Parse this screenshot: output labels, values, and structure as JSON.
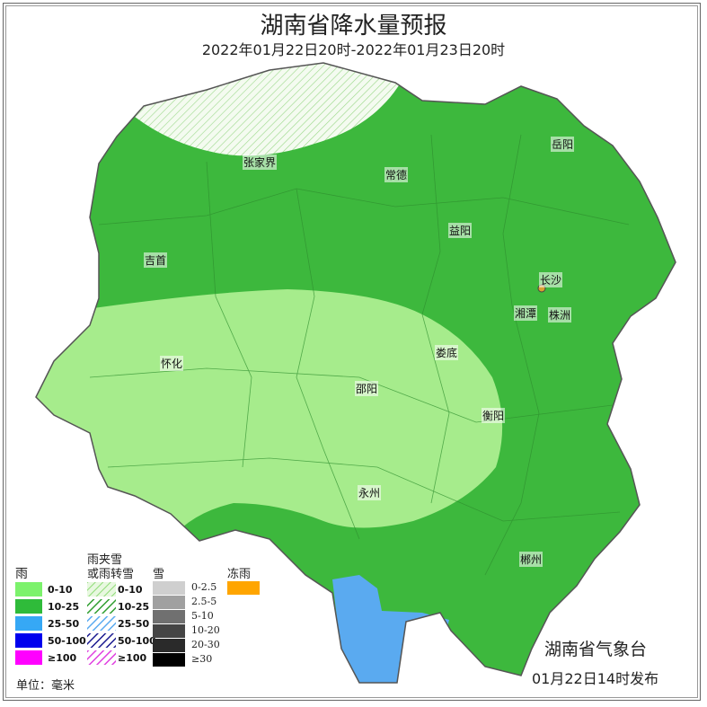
{
  "header": {
    "title": "湖南省降水量预报",
    "subtitle": "2022年01月22日20时-2022年01月23日20时"
  },
  "colors": {
    "rain_0_10": "#a6ec8c",
    "rain_10_25": "#3db83d",
    "rain_25_50": "#5aaaf0",
    "rain_50_100": "#0000ee",
    "rain_100": "#ff00ff",
    "freezing_rain": "#ffa500",
    "sleet_hatch": "#ffffff"
  },
  "cities": [
    {
      "name": "张家界"
    },
    {
      "name": "常德"
    },
    {
      "name": "岳阳"
    },
    {
      "name": "益阳"
    },
    {
      "name": "吉首"
    },
    {
      "name": "长沙"
    },
    {
      "name": "湘潭"
    },
    {
      "name": "株洲"
    },
    {
      "name": "怀化"
    },
    {
      "name": "娄底"
    },
    {
      "name": "邵阳"
    },
    {
      "name": "衡阳"
    },
    {
      "name": "永州"
    },
    {
      "name": "郴州"
    }
  ],
  "legend": {
    "rain": {
      "title": "雨",
      "items": [
        "0-10",
        "10-25",
        "25-50",
        "50-100",
        "≥100"
      ]
    },
    "sleet": {
      "title_line1": "雨夹雪",
      "title_line2": "或雨转雪",
      "items": [
        "0-10",
        "10-25",
        "25-50",
        "50-100",
        "≥100"
      ]
    },
    "snow": {
      "title": "雪",
      "items": [
        "0-2.5",
        "2.5-5",
        "5-10",
        "10-20",
        "20-30",
        "≥30"
      ]
    },
    "freezing_rain": {
      "title": "冻雨"
    },
    "unit": "单位：毫米"
  },
  "footer": {
    "organization": "湖南省气象台",
    "issued": "01月22日14时发布"
  }
}
